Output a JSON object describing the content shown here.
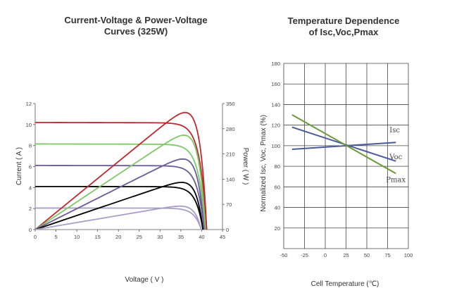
{
  "chart_data": [
    {
      "type": "line",
      "title_lines": [
        "Current-Voltage & Power-Voltage",
        "Curves (325W)"
      ],
      "xlabel": "Voltage ( V )",
      "ylabel": "Current ( A )",
      "y2label": "Power ( W )",
      "xlim": [
        0,
        45
      ],
      "ylim": [
        0,
        12
      ],
      "y2lim": [
        0,
        350
      ],
      "x_ticks": [
        "0",
        "5",
        "10",
        "15",
        "20",
        "25",
        "30",
        "35",
        "40",
        "45"
      ],
      "y_ticks": [
        "0",
        "2",
        "4",
        "6",
        "8",
        "10",
        "12"
      ],
      "y2_ticks": [
        "0",
        "70",
        "140",
        "210",
        "280",
        "350"
      ],
      "grid": false,
      "series": [
        {
          "kind": "iv",
          "color": "#c0282d",
          "isc": 10.2,
          "voc": 41.2,
          "vmp": 34.0
        },
        {
          "kind": "iv",
          "color": "#7ec86a",
          "isc": 8.15,
          "voc": 40.9,
          "vmp": 34.0
        },
        {
          "kind": "iv",
          "color": "#6a5a9a",
          "isc": 6.1,
          "voc": 40.6,
          "vmp": 34.0
        },
        {
          "kind": "iv",
          "color": "#000000",
          "isc": 4.1,
          "voc": 40.3,
          "vmp": 34.0
        },
        {
          "kind": "iv",
          "color": "#a89cc8",
          "isc": 2.05,
          "voc": 39.9,
          "vmp": 34.0
        },
        {
          "kind": "pv",
          "color": "#c0282d",
          "pmax": 325,
          "voc": 41.2,
          "vmp": 34.0
        },
        {
          "kind": "pv",
          "color": "#7ec86a",
          "pmax": 262,
          "voc": 40.9,
          "vmp": 34.0
        },
        {
          "kind": "pv",
          "color": "#6a5a9a",
          "pmax": 196,
          "voc": 40.6,
          "vmp": 34.0
        },
        {
          "kind": "pv",
          "color": "#000000",
          "pmax": 131,
          "voc": 40.3,
          "vmp": 34.0
        },
        {
          "kind": "pv",
          "color": "#a89cc8",
          "pmax": 65,
          "voc": 39.9,
          "vmp": 34.0
        }
      ]
    },
    {
      "type": "line",
      "title_lines": [
        "Temperature Dependence",
        "of Isc,Voc,Pmax"
      ],
      "xlabel": "Cell Temperature (℃)",
      "ylabel": "Normalized Isc, Voc, Pmax (%)",
      "xlim": [
        -50,
        100
      ],
      "ylim": [
        0,
        180
      ],
      "x_ticks": [
        "-50",
        "-25",
        "0",
        "25",
        "50",
        "75",
        "100"
      ],
      "y_ticks": [
        "20",
        "40",
        "60",
        "80",
        "100",
        "120",
        "140",
        "160",
        "180"
      ],
      "grid": true,
      "series": [
        {
          "name": "Isc",
          "color": "#4a5a9a",
          "x": [
            -40,
            85
          ],
          "y": [
            96.5,
            103.2
          ]
        },
        {
          "name": "Voc",
          "color": "#4a5a9a",
          "x": [
            -40,
            85
          ],
          "y": [
            118,
            85
          ]
        },
        {
          "name": "Pmax",
          "color": "#6a9a3a",
          "x": [
            -40,
            85
          ],
          "y": [
            130,
            73
          ]
        }
      ]
    }
  ]
}
